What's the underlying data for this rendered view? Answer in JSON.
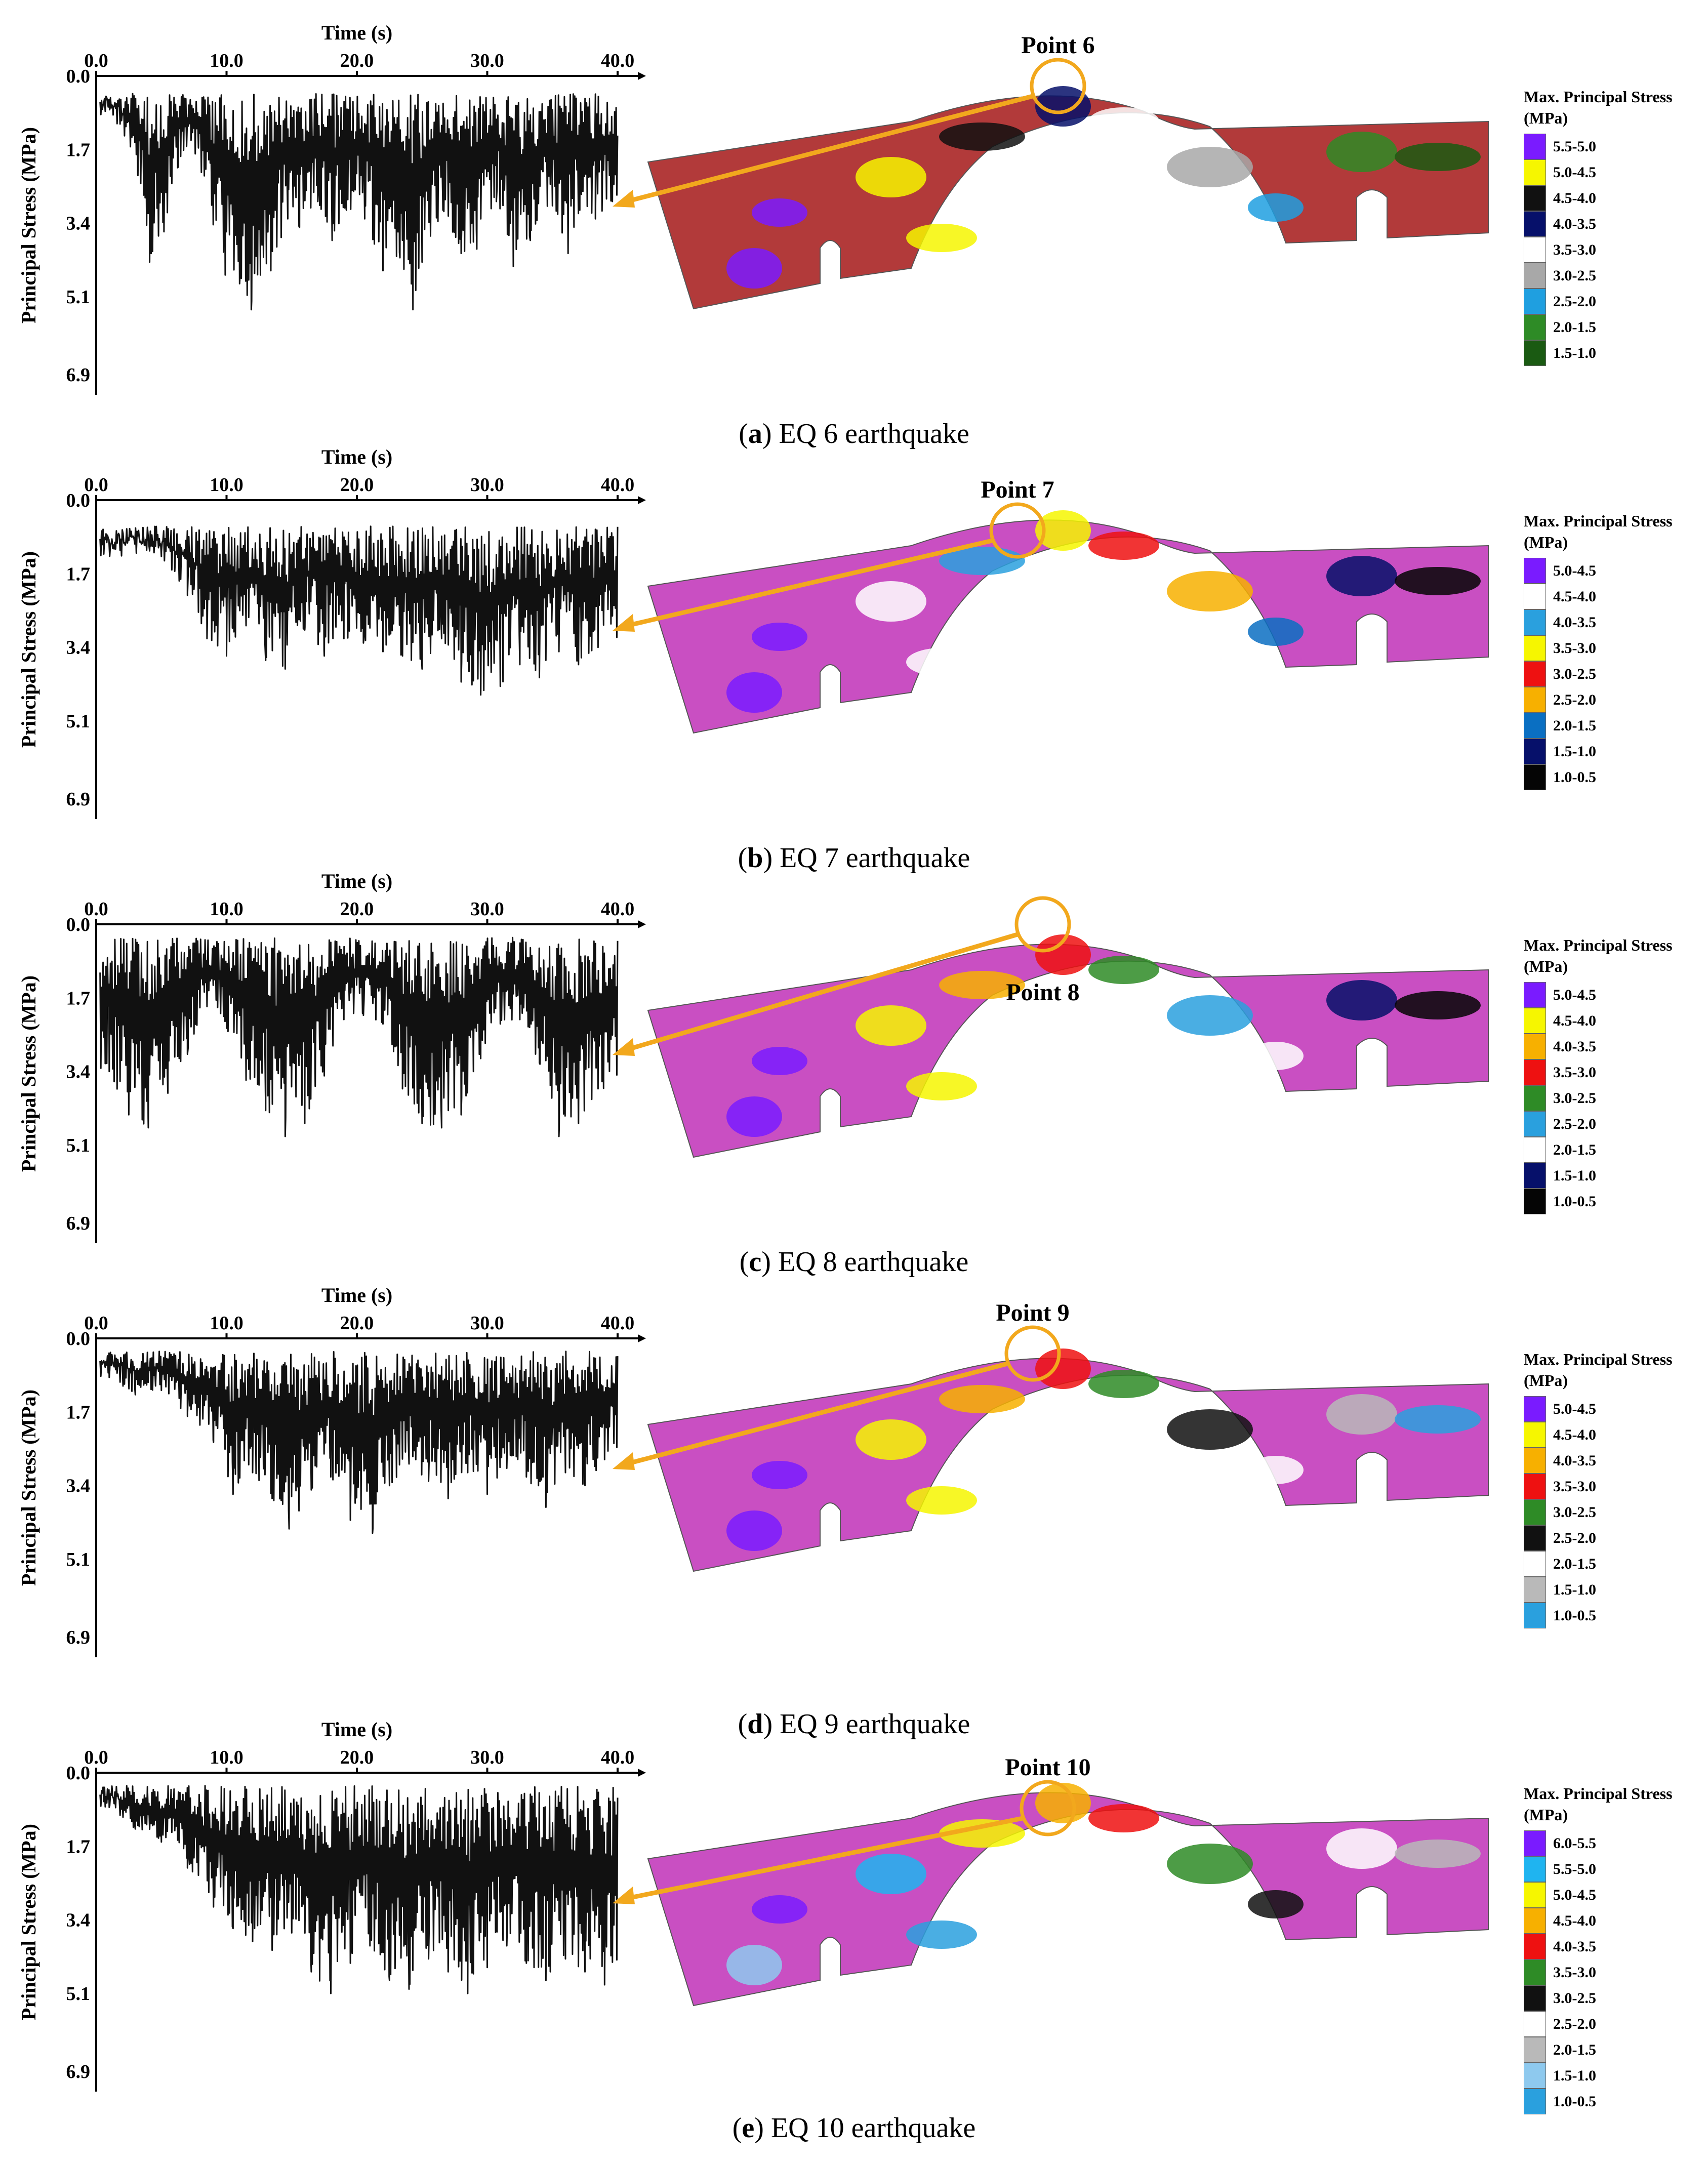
{
  "chart_data": [
    {
      "type": "line",
      "panel": "a",
      "caption_letter": "a",
      "caption_text": "EQ 6 earthquake",
      "xlabel": "Time (s)",
      "ylabel": "Principal Stress (MPa)",
      "x_ticks": [
        "0.0",
        "10.0",
        "20.0",
        "30.0",
        "40.0"
      ],
      "y_ticks": [
        "0.0",
        "1.7",
        "3.4",
        "5.1",
        "6.9"
      ],
      "xlim": [
        0,
        40
      ],
      "ylim": [
        0,
        6.9
      ],
      "y_inverted": true,
      "series": [
        {
          "envelope": {
            "peak_times": [
              1.3,
              3.2,
              4.1,
              5.2,
              6.3,
              7.6,
              9.9,
              11.0,
              11.9,
              12.6,
              13.4,
              14.7,
              15.6,
              17.0,
              18.1,
              19.2,
              20.6,
              22.0,
              23.3,
              24.3,
              25.0,
              26.6,
              28.0,
              29.2,
              30.7,
              32.0,
              33.3,
              35.0,
              36.2,
              37.1,
              38.3,
              39.6
            ],
            "peak_values": [
              0.9,
              2.3,
              4.3,
              3.6,
              2.1,
              1.8,
              4.6,
              4.8,
              5.4,
              4.6,
              4.5,
              3.3,
              3.5,
              2.9,
              3.8,
              3.1,
              3.3,
              4.5,
              4.2,
              5.4,
              4.3,
              3.1,
              4.1,
              4.0,
              2.9,
              4.4,
              3.8,
              3.0,
              4.1,
              3.1,
              3.3,
              2.9
            ],
            "baseline": 0.4
          }
        }
      ],
      "point_label": "Point 6",
      "legend": {
        "title": "Max. Principal Stress (MPa)",
        "items": [
          {
            "label": "5.5-5.0",
            "color": "#7a1bff"
          },
          {
            "label": "5.0-4.5",
            "color": "#f6f600"
          },
          {
            "label": "4.5-4.0",
            "color": "#111111"
          },
          {
            "label": "4.0-3.5",
            "color": "#06106a"
          },
          {
            "label": "3.5-3.0",
            "color": "#ffffff"
          },
          {
            "label": "3.0-2.5",
            "color": "#a8a8a8"
          },
          {
            "label": "2.5-2.0",
            "color": "#1f9fe0"
          },
          {
            "label": "2.0-1.5",
            "color": "#2e8b26"
          },
          {
            "label": "1.5-1.0",
            "color": "#1a5a12"
          }
        ]
      }
    },
    {
      "type": "line",
      "panel": "b",
      "caption_letter": "b",
      "caption_text": "EQ 7 earthquake",
      "xlabel": "Time (s)",
      "ylabel": "Principal Stress (MPa)",
      "x_ticks": [
        "0.0",
        "10.0",
        "20.0",
        "30.0",
        "40.0"
      ],
      "y_ticks": [
        "0.0",
        "1.7",
        "3.4",
        "5.1",
        "6.9"
      ],
      "xlim": [
        0,
        40
      ],
      "ylim": [
        0,
        6.9
      ],
      "y_inverted": true,
      "series": [
        {
          "envelope": {
            "peak_times": [
              5.0,
              7.0,
              8.5,
              10.0,
              11.5,
              13.0,
              14.5,
              16.0,
              17.5,
              19.0,
              20.5,
              22.0,
              23.5,
              25.0,
              26.5,
              28.0,
              29.5,
              31.0,
              32.5,
              34.0,
              35.5,
              37.0,
              38.5
            ],
            "peak_values": [
              1.3,
              2.2,
              3.2,
              3.6,
              2.9,
              3.7,
              3.9,
              3.0,
              3.6,
              3.2,
              3.3,
              3.5,
              3.6,
              3.9,
              3.2,
              4.2,
              4.5,
              4.3,
              3.8,
              4.1,
              3.5,
              3.8,
              3.4
            ],
            "baseline": 0.6
          }
        }
      ],
      "point_label": "Point 7",
      "legend": {
        "title": "Max. Principal Stress (MPa)",
        "items": [
          {
            "label": "5.0-4.5",
            "color": "#7a1bff"
          },
          {
            "label": "4.5-4.0",
            "color": "#ffffff"
          },
          {
            "label": "4.0-3.5",
            "color": "#2aa0de"
          },
          {
            "label": "3.5-3.0",
            "color": "#f6f600"
          },
          {
            "label": "3.0-2.5",
            "color": "#ee1111"
          },
          {
            "label": "2.5-2.0",
            "color": "#f7b000"
          },
          {
            "label": "2.0-1.5",
            "color": "#0a6fc2"
          },
          {
            "label": "1.5-1.0",
            "color": "#06106a"
          },
          {
            "label": "1.0-0.5",
            "color": "#050505"
          }
        ]
      }
    },
    {
      "type": "line",
      "panel": "c",
      "caption_letter": "c",
      "caption_text": "EQ 8 earthquake",
      "xlabel": "Time (s)",
      "ylabel": "Principal Stress (MPa)",
      "x_ticks": [
        "0.0",
        "10.0",
        "20.0",
        "30.0",
        "40.0"
      ],
      "y_ticks": [
        "0.0",
        "1.7",
        "3.4",
        "5.1",
        "6.9"
      ],
      "xlim": [
        0,
        40
      ],
      "ylim": [
        0,
        6.9
      ],
      "y_inverted": true,
      "series": [
        {
          "envelope": {
            "peak_times": [
              1.0,
              2.5,
              4.0,
              5.5,
              7.0,
              8.5,
              10.0,
              11.5,
              13.0,
              14.5,
              16.0,
              17.5,
              19.0,
              20.5,
              22.0,
              23.5,
              25.0,
              26.5,
              28.0,
              29.5,
              31.0,
              32.5,
              34.0,
              35.5,
              37.0,
              38.5
            ],
            "peak_values": [
              3.4,
              4.4,
              4.7,
              3.9,
              3.0,
              1.9,
              2.4,
              3.6,
              4.3,
              4.9,
              4.6,
              3.5,
              2.2,
              2.1,
              2.3,
              3.8,
              4.6,
              4.7,
              4.4,
              3.1,
              2.3,
              2.2,
              3.2,
              4.9,
              4.6,
              3.8
            ],
            "baseline": 0.3
          }
        }
      ],
      "point_label": "Point 8",
      "legend": {
        "title": "Max. Principal Stress (MPa)",
        "items": [
          {
            "label": "5.0-4.5",
            "color": "#7a1bff"
          },
          {
            "label": "4.5-4.0",
            "color": "#f6f600"
          },
          {
            "label": "4.0-3.5",
            "color": "#f7b000"
          },
          {
            "label": "3.5-3.0",
            "color": "#ee1111"
          },
          {
            "label": "3.0-2.5",
            "color": "#2e8b26"
          },
          {
            "label": "2.5-2.0",
            "color": "#2aa0de"
          },
          {
            "label": "2.0-1.5",
            "color": "#ffffff"
          },
          {
            "label": "1.5-1.0",
            "color": "#06106a"
          },
          {
            "label": "1.0-0.5",
            "color": "#050505"
          }
        ]
      }
    },
    {
      "type": "line",
      "panel": "d",
      "caption_letter": "d",
      "caption_text": "EQ 9 earthquake",
      "xlabel": "Time (s)",
      "ylabel": "Principal Stress (MPa)",
      "x_ticks": [
        "0.0",
        "10.0",
        "20.0",
        "30.0",
        "40.0"
      ],
      "y_ticks": [
        "0.0",
        "1.7",
        "3.4",
        "5.1",
        "6.9"
      ],
      "xlim": [
        0,
        40
      ],
      "ylim": [
        0,
        6.9
      ],
      "y_inverted": true,
      "series": [
        {
          "envelope": {
            "peak_times": [
              1.0,
              3.0,
              5.0,
              7.0,
              9.0,
              10.5,
              12.0,
              13.5,
              14.8,
              16.5,
              18.0,
              19.5,
              21.2,
              22.5,
              24.0,
              25.5,
              27.0,
              28.5,
              30.0,
              31.5,
              33.0,
              34.5,
              36.0,
              37.5,
              39.0
            ],
            "peak_values": [
              0.9,
              1.3,
              1.2,
              1.8,
              2.4,
              3.6,
              3.1,
              3.7,
              4.4,
              3.5,
              3.2,
              4.2,
              4.5,
              3.4,
              2.9,
              3.3,
              3.7,
              3.1,
              3.6,
              3.0,
              3.2,
              3.9,
              3.1,
              3.4,
              2.8
            ],
            "baseline": 0.3
          }
        }
      ],
      "point_label": "Point 9",
      "legend": {
        "title": "Max. Principal Stress (MPa)",
        "items": [
          {
            "label": "5.0-4.5",
            "color": "#7a1bff"
          },
          {
            "label": "4.5-4.0",
            "color": "#f6f600"
          },
          {
            "label": "4.0-3.5",
            "color": "#f7b000"
          },
          {
            "label": "3.5-3.0",
            "color": "#ee1111"
          },
          {
            "label": "3.0-2.5",
            "color": "#2e8b26"
          },
          {
            "label": "2.5-2.0",
            "color": "#111111"
          },
          {
            "label": "2.0-1.5",
            "color": "#ffffff"
          },
          {
            "label": "1.5-1.0",
            "color": "#b9b9b9"
          },
          {
            "label": "1.0-0.5",
            "color": "#2aa0de"
          }
        ]
      }
    },
    {
      "type": "line",
      "panel": "e",
      "caption_letter": "e",
      "caption_text": "EQ 10 earthquake",
      "xlabel": "Time (s)",
      "ylabel": "Principal Stress (MPa)",
      "x_ticks": [
        "0.0",
        "10.0",
        "20.0",
        "30.0",
        "40.0"
      ],
      "y_ticks": [
        "0.0",
        "1.7",
        "3.4",
        "5.1",
        "6.9"
      ],
      "xlim": [
        0,
        40
      ],
      "ylim": [
        0,
        6.9
      ],
      "y_inverted": true,
      "series": [
        {
          "envelope": {
            "peak_times": [
              1.0,
              3.0,
              5.0,
              7.0,
              9.0,
              10.5,
              12.0,
              13.5,
              15.0,
              16.5,
              18.0,
              19.5,
              21.0,
              22.5,
              24.0,
              25.5,
              27.0,
              28.5,
              30.0,
              31.5,
              33.0,
              34.5,
              36.0,
              37.5,
              39.0
            ],
            "peak_values": [
              0.8,
              1.3,
              1.6,
              2.2,
              3.1,
              3.6,
              3.9,
              4.1,
              3.7,
              4.6,
              5.1,
              4.4,
              4.0,
              4.8,
              5.0,
              4.3,
              4.6,
              5.1,
              4.5,
              4.0,
              4.4,
              4.8,
              4.3,
              4.6,
              4.9
            ],
            "baseline": 0.3
          }
        }
      ],
      "point_label": "Point 10",
      "legend": {
        "title": "Max. Principal Stress (MPa)",
        "items": [
          {
            "label": "6.0-5.5",
            "color": "#7a1bff"
          },
          {
            "label": "5.5-5.0",
            "color": "#1fb4f0"
          },
          {
            "label": "5.0-4.5",
            "color": "#f6f600"
          },
          {
            "label": "4.5-4.0",
            "color": "#f7b000"
          },
          {
            "label": "4.0-3.5",
            "color": "#ee1111"
          },
          {
            "label": "3.5-3.0",
            "color": "#2e8b26"
          },
          {
            "label": "3.0-2.5",
            "color": "#111111"
          },
          {
            "label": "2.5-2.0",
            "color": "#ffffff"
          },
          {
            "label": "2.0-1.5",
            "color": "#b9b9b9"
          },
          {
            "label": "1.5-1.0",
            "color": "#8ec9ee"
          },
          {
            "label": "1.0-0.5",
            "color": "#2aa0de"
          }
        ]
      }
    }
  ]
}
